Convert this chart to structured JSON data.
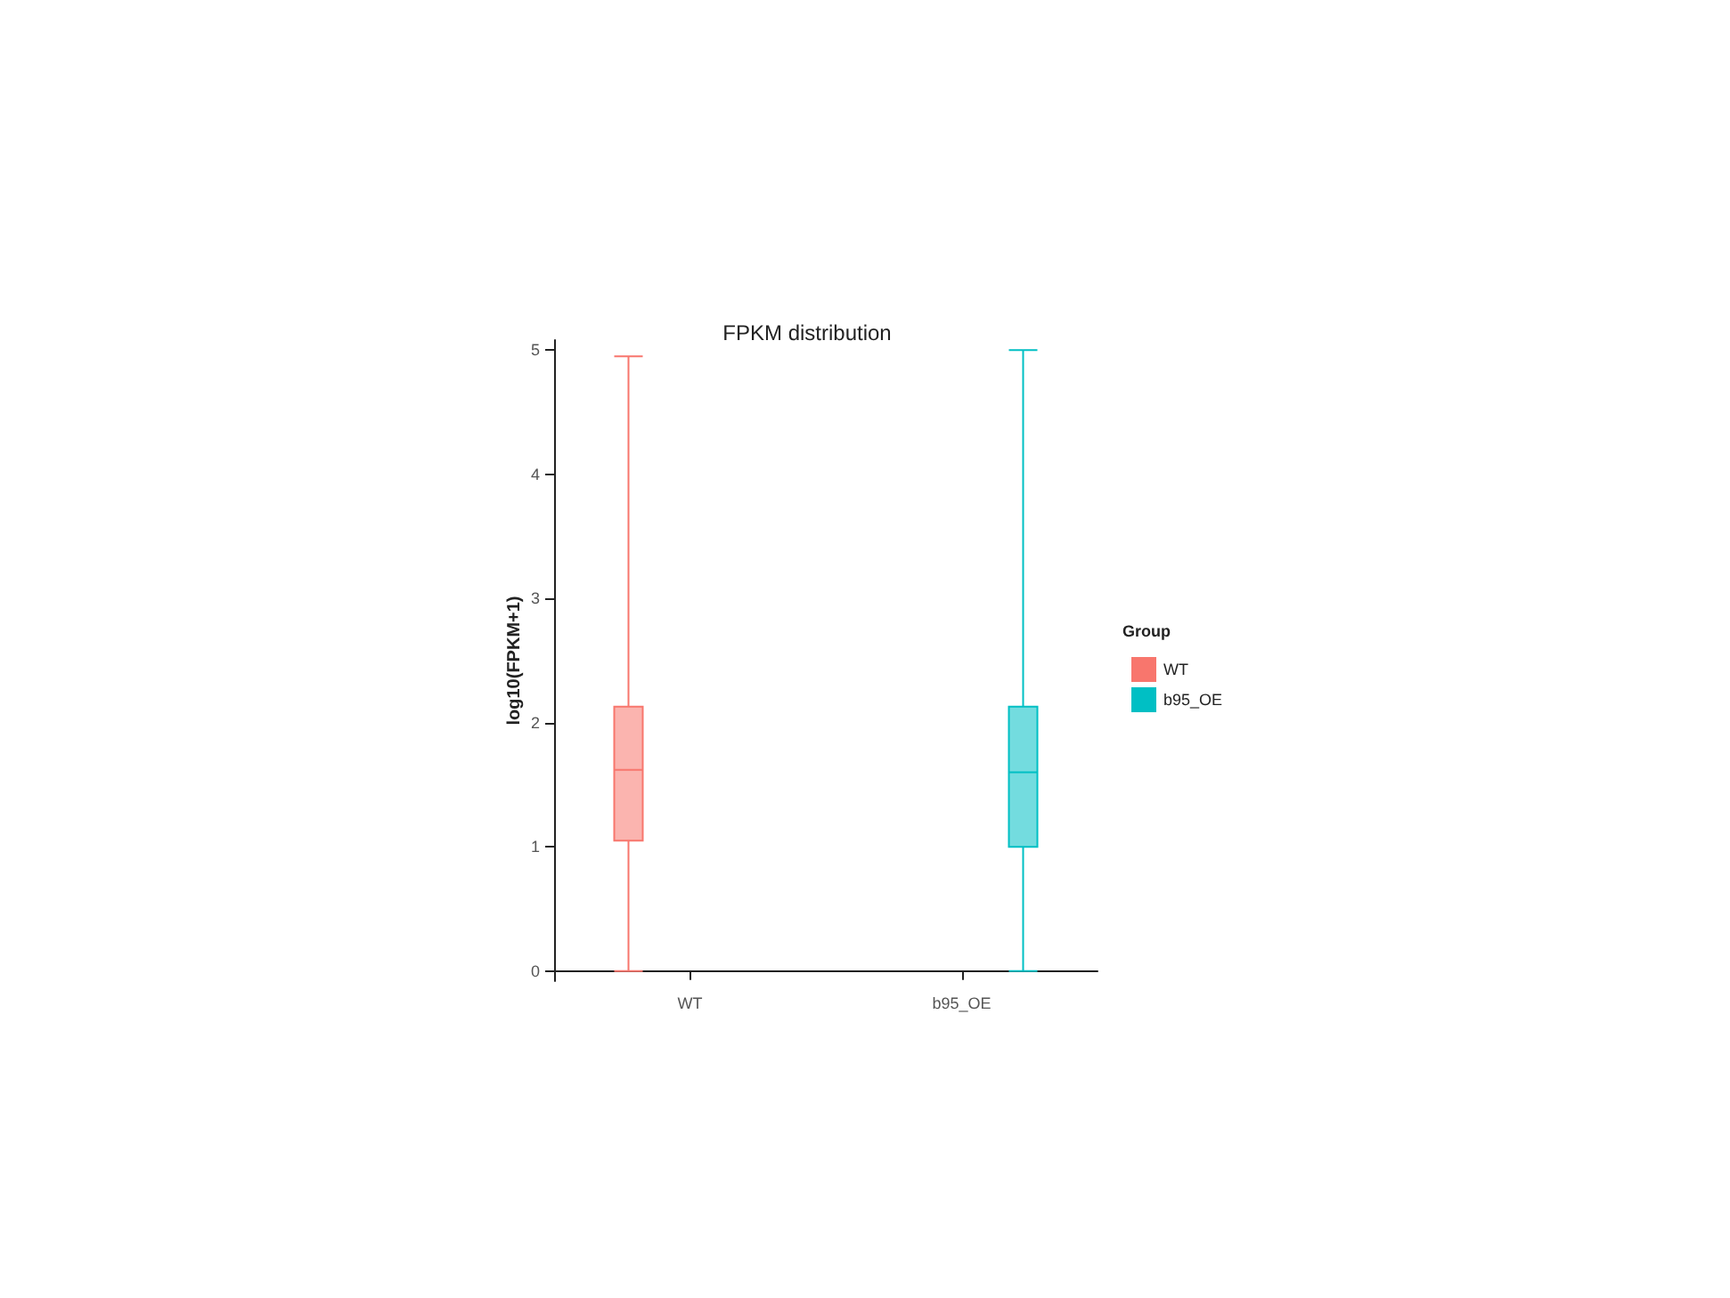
{
  "chart_data": {
    "type": "box",
    "title": "FPKM distribution",
    "ylabel": "log10(FPKM+1)",
    "legend_title": "Group",
    "categories": [
      "WT",
      "b95_OE"
    ],
    "series": [
      {
        "name": "WT",
        "color": "#f8766d",
        "boxes": [
          {
            "low": 0,
            "q1": 1.05,
            "median": 1.62,
            "q3": 2.13,
            "high": 4.95
          },
          null
        ]
      },
      {
        "name": "b95_OE",
        "color": "#00bfc4",
        "boxes": [
          null,
          {
            "low": 0,
            "q1": 1.0,
            "median": 1.6,
            "q3": 2.13,
            "high": 5.0
          }
        ]
      }
    ],
    "ylim": [
      -0.08,
      5.08
    ],
    "yticks": [
      0,
      1,
      2,
      3,
      4,
      5
    ],
    "grid": false,
    "legend": "right"
  }
}
